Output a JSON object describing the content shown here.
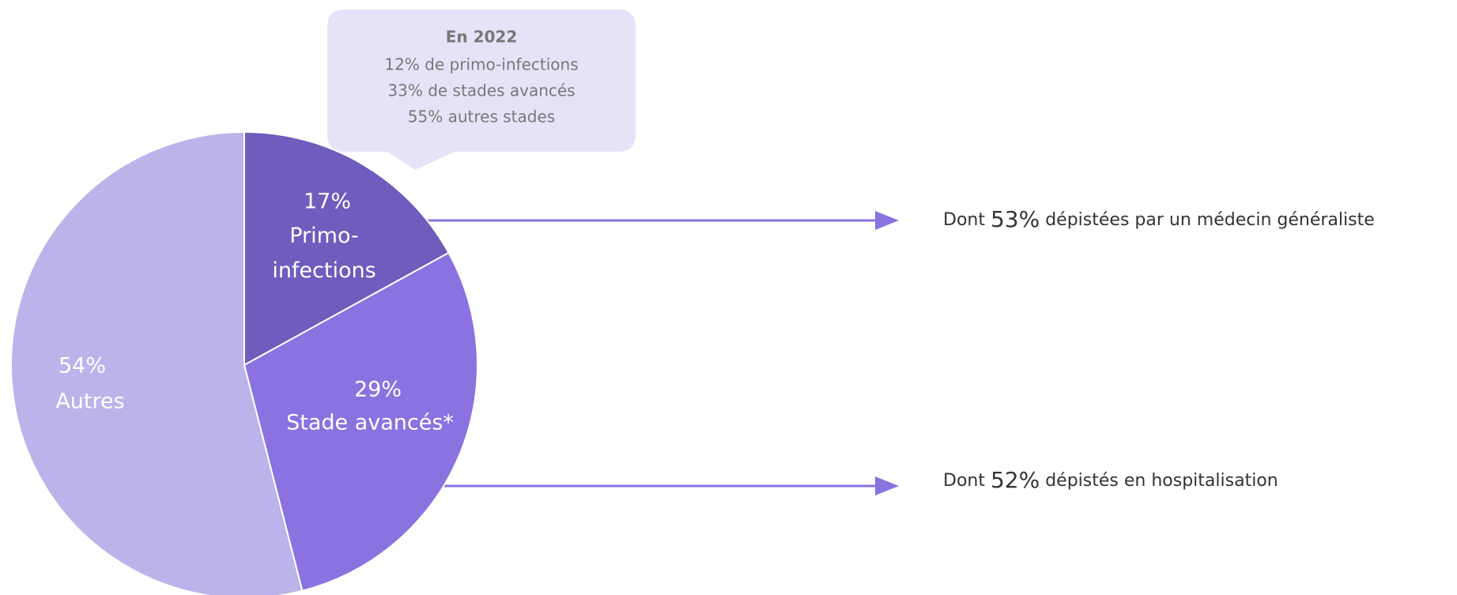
{
  "chart_data": {
    "type": "pie",
    "categories": [
      "Primo-infections",
      "Stade avancés*",
      "Autres"
    ],
    "values": [
      17,
      29,
      54
    ],
    "value_labels": [
      "17%",
      "29%",
      "54%"
    ],
    "colors": [
      "#6f5cbc",
      "#8a72e0",
      "#bcb3ea"
    ],
    "callout": {
      "title": "En 2022",
      "lines": [
        "12% de primo-infections",
        "33% de stades avancés",
        "55% autres stades"
      ]
    },
    "annotations": [
      {
        "prefix": "Dont",
        "highlight": "53%",
        "suffix": "dépistées par un médecin généraliste"
      },
      {
        "prefix": "Dont",
        "highlight": "52%",
        "suffix": "dépistés  en hospitalisation"
      }
    ]
  }
}
